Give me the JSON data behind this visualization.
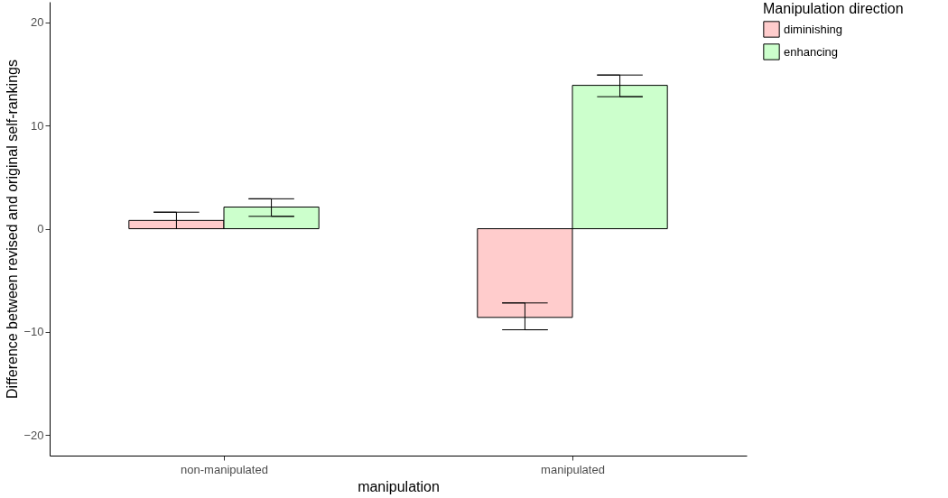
{
  "chart_data": {
    "type": "bar",
    "xlabel": "manipulation",
    "ylabel": "Difference between revised and original self-rankings",
    "legend_title": "Manipulation direction",
    "categories": [
      "non-manipulated",
      "manipulated"
    ],
    "series": [
      {
        "name": "diminishing",
        "color": "#ffcccc",
        "values": [
          0.8,
          -8.6
        ],
        "errors": [
          [
            0,
            1.6
          ],
          [
            -9.8,
            -7.2
          ]
        ]
      },
      {
        "name": "enhancing",
        "color": "#ccffcc",
        "values": [
          2.1,
          13.9
        ],
        "errors": [
          [
            1.2,
            2.9
          ],
          [
            12.8,
            14.9
          ]
        ]
      }
    ],
    "ylim": [
      -22,
      22
    ],
    "yticks": [
      -20,
      -10,
      0,
      10,
      20
    ],
    "grid": false,
    "legend": "right"
  }
}
